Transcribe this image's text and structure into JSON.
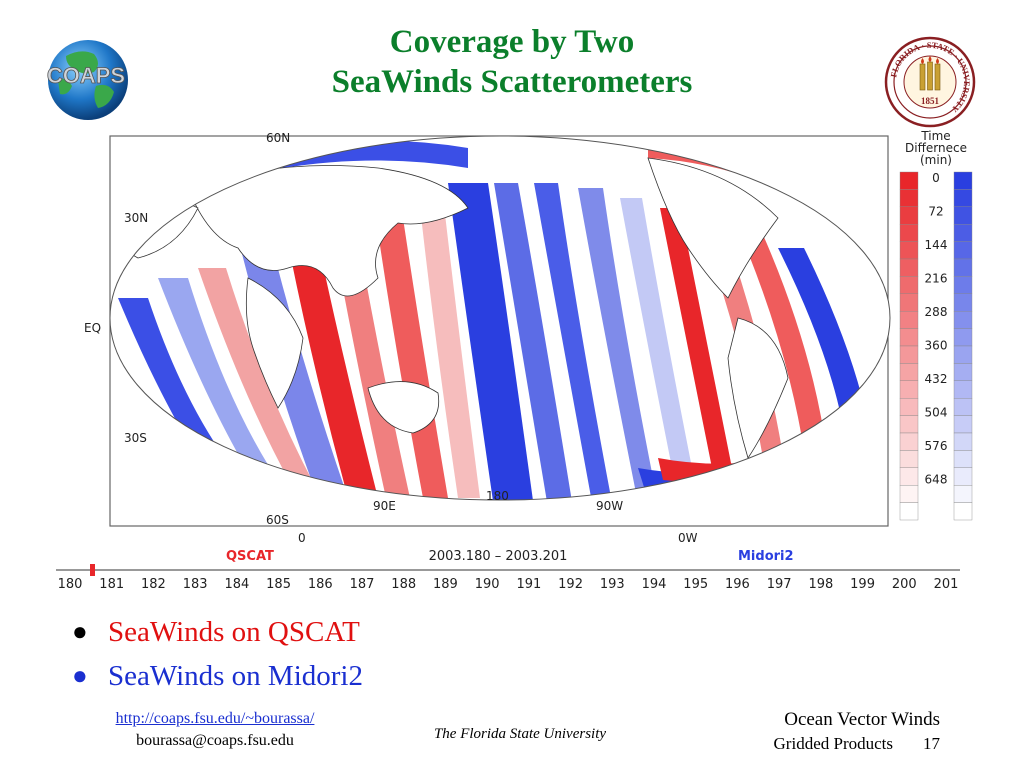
{
  "slide": {
    "title_line1": "Coverage by Two",
    "title_line2": "SeaWinds Scatterometers",
    "bullets": [
      {
        "text": "SeaWinds on QSCAT",
        "color": "#e01010"
      },
      {
        "text": "SeaWinds on Midori2",
        "color": "#1a2fd0"
      }
    ],
    "footer": {
      "url": "http://coaps.fsu.edu/~bourassa/",
      "email": "bourassa@coaps.fsu.edu",
      "university": "The Florida State University",
      "right_title": "Ocean Vector Winds",
      "right_sub": "Gridded Products",
      "page_number": "17"
    }
  },
  "logos": {
    "coaps": "COAPS",
    "fsu_ring_text": "FLORIDA · STATE · UNIVERSITY",
    "fsu_year": "1851"
  },
  "figure": {
    "lat_labels": [
      "60N",
      "30N",
      "EQ",
      "30S",
      "60S"
    ],
    "lon_labels": [
      "90E",
      "180",
      "90W"
    ],
    "bottom_lon_labels": [
      "0",
      "0W"
    ],
    "legend_title": [
      "Time",
      "Differnece",
      "(min)"
    ],
    "legend_values": [
      "0",
      "72",
      "144",
      "216",
      "288",
      "360",
      "432",
      "504",
      "576",
      "648"
    ],
    "qscat_label": "QSCAT",
    "midori_label": "Midori2",
    "date_range": "2003.180  –  2003.201",
    "timeline_days": [
      "180",
      "181",
      "182",
      "183",
      "184",
      "185",
      "186",
      "187",
      "188",
      "189",
      "190",
      "191",
      "192",
      "193",
      "194",
      "195",
      "196",
      "197",
      "198",
      "199",
      "200",
      "201"
    ],
    "timeline_marker_day": 180,
    "colors": {
      "qscat": "#e8262a",
      "midori": "#2a3fe0"
    }
  }
}
